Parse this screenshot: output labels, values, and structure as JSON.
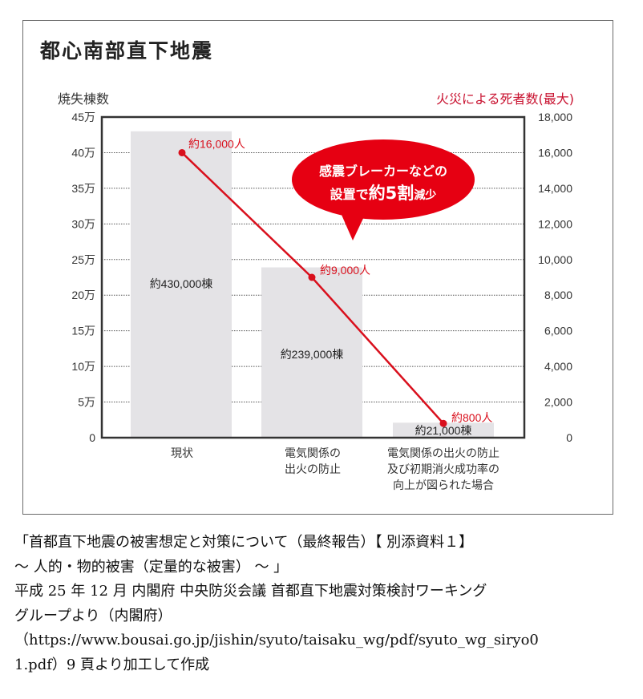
{
  "title": "都心南部直下地震",
  "left_axis_label": "焼失棟数",
  "right_axis_label": "火災による死者数(最大)",
  "callout": {
    "line1": "感震ブレーカーなどの",
    "line2_prefix": "設置で",
    "line2_emph": "約5割",
    "line2_suffix": "減少"
  },
  "categories": [
    {
      "label": "現状"
    },
    {
      "label": "電気関係の\n出火の防止"
    },
    {
      "label": "電気関係の出火の防止\n及び初期消火成功率の\n向上が図られた場合"
    }
  ],
  "colors": {
    "bar": "#e4e3e6",
    "line": "#d9101d",
    "bubble": "#e60012",
    "axis_text": "#333333",
    "right_label": "#c8102e"
  },
  "chart_data": {
    "type": "bar+line",
    "title": "都心南部直下地震",
    "categories": [
      "現状",
      "電気関係の出火の防止",
      "電気関係の出火の防止及び初期消火成功率の向上が図られた場合"
    ],
    "series": [
      {
        "name": "焼失棟数",
        "type": "bar",
        "axis": "left",
        "values": [
          430000,
          239000,
          21000
        ],
        "labels": [
          "約430,000棟",
          "約239,000棟",
          "約21,000棟"
        ]
      },
      {
        "name": "火災による死者数(最大)",
        "type": "line",
        "axis": "right",
        "values": [
          16000,
          9000,
          800
        ],
        "labels": [
          "約16,000人",
          "約9,000人",
          "約800人"
        ]
      }
    ],
    "ylabel": "焼失棟数",
    "y2label": "火災による死者数(最大)",
    "ylim": [
      0,
      450000
    ],
    "y2lim": [
      0,
      18000
    ],
    "yticks": [
      "0",
      "5万",
      "10万",
      "15万",
      "20万",
      "25万",
      "30万",
      "35万",
      "40万",
      "45万"
    ],
    "y2ticks": [
      "0",
      "2,000",
      "4,000",
      "6,000",
      "8,000",
      "10,000",
      "12,000",
      "14,000",
      "16,000",
      "18,000"
    ],
    "grid": "dotted horizontal",
    "annotation": "感震ブレーカーなどの設置で約5割減少"
  },
  "caption": {
    "lines": [
      "「首都直下地震の被害想定と対策について（最終報告）【 別添資料１】",
      "～ 人的・物的被害（定量的な被害） ～ 」",
      "平成 25 年 12 月  内閣府  中央防災会議  首都直下地震対策検討ワーキング",
      "グループより（内閣府）",
      "（https://www.bousai.go.jp/jishin/syuto/taisaku_wg/pdf/syuto_wg_siryo0",
      "1.pdf）9 頁より加工して作成"
    ]
  }
}
